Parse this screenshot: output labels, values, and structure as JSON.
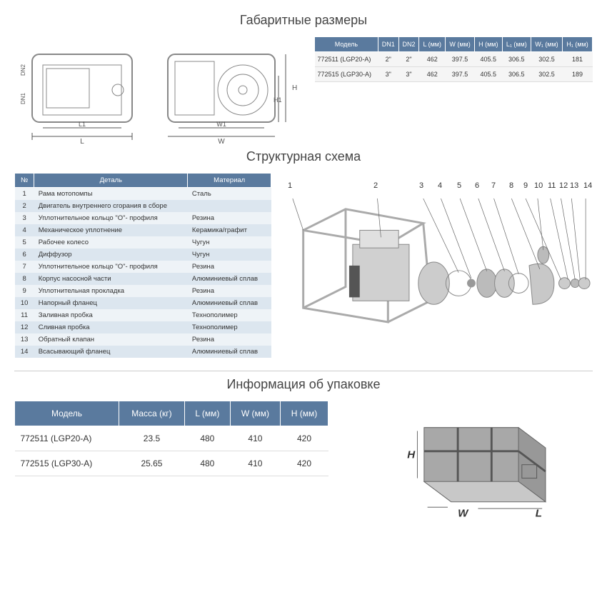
{
  "section1": {
    "title": "Габаритные размеры",
    "drawing_labels": [
      "DN2",
      "DN1",
      "L1",
      "L",
      "H",
      "H1",
      "W1",
      "W"
    ],
    "table": {
      "columns": [
        "Модель",
        "DN1",
        "DN2",
        "L (мм)",
        "W (мм)",
        "H (мм)",
        "L₁ (мм)",
        "W₁ (мм)",
        "H₁ (мм)"
      ],
      "rows": [
        [
          "772511 (LGP20-A)",
          "2\"",
          "2\"",
          "462",
          "397.5",
          "405.5",
          "306.5",
          "302.5",
          "181"
        ],
        [
          "772515 (LGP30-A)",
          "3\"",
          "3\"",
          "462",
          "397.5",
          "405.5",
          "306.5",
          "302.5",
          "189"
        ]
      ]
    },
    "colors": {
      "header_bg": "#5a7a9e",
      "header_fg": "#ffffff",
      "row_bg": "#f5f5f5"
    }
  },
  "section2": {
    "title": "Структурная схема",
    "table": {
      "columns": [
        "№",
        "Деталь",
        "Материал"
      ],
      "rows": [
        [
          "1",
          "Рама мотопомпы",
          "Сталь"
        ],
        [
          "2",
          "Двигатель внутреннего сгорания в сборе",
          ""
        ],
        [
          "3",
          "Уплотнительное кольцо \"O\"- профиля",
          "Резина"
        ],
        [
          "4",
          "Механическое уплотнение",
          "Керамика/графит"
        ],
        [
          "5",
          "Рабочее колесо",
          "Чугун"
        ],
        [
          "6",
          "Диффузор",
          "Чугун"
        ],
        [
          "7",
          "Уплотнительное кольцо \"O\"- профиля",
          "Резина"
        ],
        [
          "8",
          "Корпус насосной части",
          "Алюминиевый сплав"
        ],
        [
          "9",
          "Уплотнительная прокладка",
          "Резина"
        ],
        [
          "10",
          "Напорный фланец",
          "Алюминиевый сплав"
        ],
        [
          "11",
          "Заливная пробка",
          "Технополимер"
        ],
        [
          "12",
          "Сливная пробка",
          "Технополимер"
        ],
        [
          "13",
          "Обратный клапан",
          "Резина"
        ],
        [
          "14",
          "Всасывающий фланец",
          "Алюминиевый сплав"
        ]
      ]
    },
    "callouts": [
      "1",
      "2",
      "3",
      "4",
      "5",
      "6",
      "7",
      "8",
      "9",
      "10",
      "11",
      "12",
      "13",
      "14"
    ],
    "colors": {
      "header_bg": "#5a7a9e",
      "row_alt1": "#dce6ef",
      "row_alt2": "#eef3f7"
    }
  },
  "section3": {
    "title": "Информация об упаковке",
    "table": {
      "columns": [
        "Модель",
        "Масса (кг)",
        "L (мм)",
        "W (мм)",
        "H (мм)"
      ],
      "rows": [
        [
          "772511 (LGP20-A)",
          "23.5",
          "480",
          "410",
          "420"
        ],
        [
          "772515 (LGP30-A)",
          "25.65",
          "480",
          "410",
          "420"
        ]
      ]
    },
    "box_labels": [
      "H",
      "W",
      "L"
    ]
  }
}
